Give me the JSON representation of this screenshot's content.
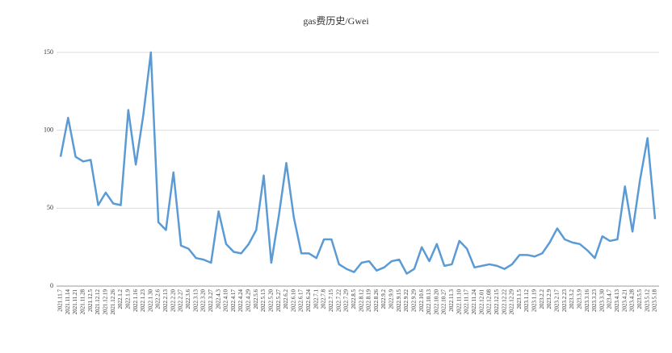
{
  "chart_data": {
    "type": "line",
    "title": "gas费历史/Gwei",
    "categories": [
      "2021.11.7",
      "2021.11.14",
      "2021.11.21",
      "2021.11.28",
      "2021.12.5",
      "2021.12.12",
      "2021.12.19",
      "2021.12.26",
      "2022.1.2",
      "2022.1.9",
      "2022.1.16",
      "2022.1.23",
      "2022.1.30",
      "2022.2.6",
      "2022.2.13",
      "2022.2.20",
      "2022.2.27",
      "2022.3.6",
      "2022.3.13",
      "2022.3.20",
      "2022.3.27",
      "2022.4.3",
      "2022.4.10",
      "2022.4.17",
      "2022.4.24",
      "2022.4.29",
      "2022.5.6",
      "2022.5.13",
      "2022.5.20",
      "2022.5.27",
      "2022.6.2",
      "2022.6.10",
      "2022.6.17",
      "2022.6.24",
      "2022.7.1",
      "2022.7.8",
      "2022.7.15",
      "2022.7.22",
      "2022.7.29",
      "2022.8.5",
      "2022.8.12",
      "2022.8.19",
      "2022.8.26",
      "2022.9.2",
      "2022.9.9",
      "2022.9.15",
      "2022.9.22",
      "2022.9.29",
      "2022.10.6",
      "2022.10.13",
      "2022.10.20",
      "2022.10.27",
      "2022.11.3",
      "2022.11.10",
      "2022.11.17",
      "2022.11.24",
      "2022.12.01",
      "2022.12.08",
      "2022.12.15",
      "2022.12.22",
      "2022.12.29",
      "2023.1.5",
      "2023.1.12",
      "2023.1.19",
      "2023.2.2",
      "2023.2.9",
      "2023.2.17",
      "2023.2.23",
      "2023.3.2",
      "2023.3.9",
      "2023.3.16",
      "2023.3.23",
      "2023.3.30",
      "2023.4.7",
      "2023.4.13",
      "2023.4.21",
      "2023.4.28",
      "2023.5.5",
      "2023.5.12",
      "2023.5.18"
    ],
    "series": [
      {
        "name": "gas",
        "color": "#5b9bd5",
        "values": [
          83,
          108,
          83,
          80,
          81,
          52,
          60,
          53,
          52,
          113,
          78,
          110,
          150,
          41,
          36,
          73,
          26,
          24,
          18,
          17,
          15,
          48,
          27,
          22,
          21,
          27,
          36,
          71,
          15,
          45,
          79,
          44,
          21,
          21,
          18,
          30,
          30,
          14,
          11,
          9,
          15,
          16,
          10,
          12,
          16,
          17,
          8,
          11,
          25,
          16,
          27,
          13,
          14,
          29,
          24,
          12,
          13,
          14,
          13,
          11,
          14,
          20,
          20,
          19,
          21,
          28,
          37,
          30,
          28,
          27,
          23,
          18,
          32,
          29,
          30,
          64,
          35,
          68,
          95,
          43
        ]
      }
    ],
    "ylim": [
      0,
      150
    ],
    "yticks": [
      0,
      50,
      100,
      150
    ],
    "grid": true
  }
}
